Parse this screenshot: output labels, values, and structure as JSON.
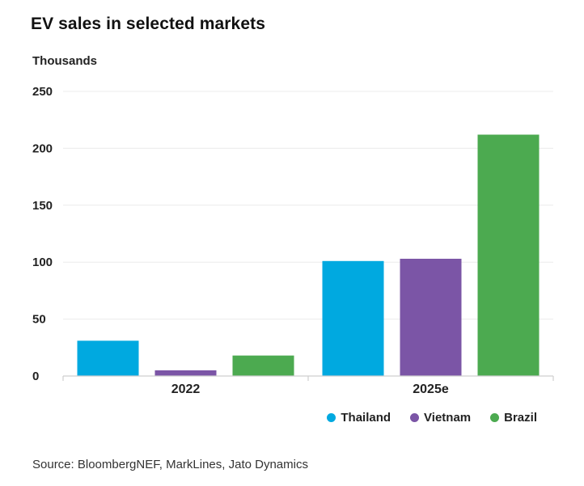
{
  "chart_data": {
    "type": "bar",
    "title": "EV sales in selected markets",
    "ylabel": "Thousands",
    "xlabel": "",
    "categories": [
      "2022",
      "2025e"
    ],
    "series": [
      {
        "name": "Thailand",
        "color": "#00a9e0",
        "values": [
          31,
          101
        ]
      },
      {
        "name": "Vietnam",
        "color": "#7b55a6",
        "values": [
          5,
          103
        ]
      },
      {
        "name": "Brazil",
        "color": "#4caa50",
        "values": [
          18,
          212
        ]
      }
    ],
    "ylim": [
      0,
      250
    ],
    "yticks": [
      0,
      50,
      100,
      150,
      200,
      250
    ],
    "grid": true,
    "legend_position": "bottom-right"
  },
  "source": "Source: BloombergNEF, MarkLines, Jato Dynamics"
}
